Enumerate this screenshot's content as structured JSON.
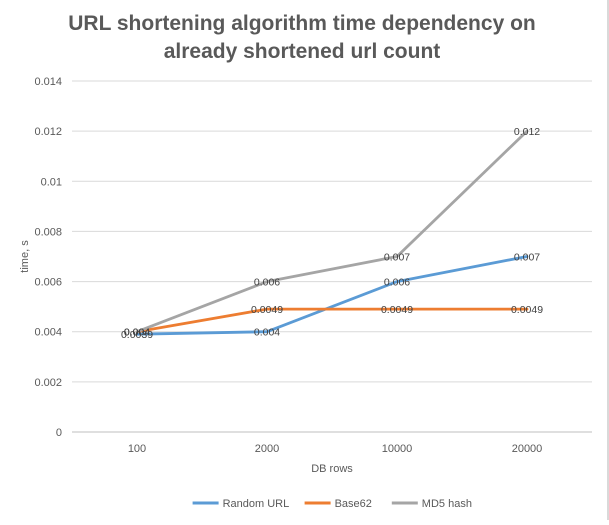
{
  "chart_data": {
    "type": "line",
    "title": "URL shortening algorithm time dependency on already shortened url count",
    "xlabel": "DB rows",
    "ylabel": "time, s",
    "categories": [
      "100",
      "2000",
      "10000",
      "20000"
    ],
    "ylim": [
      0,
      0.014
    ],
    "yticks": [
      "0",
      "0.002",
      "0.004",
      "0.006",
      "0.008",
      "0.01",
      "0.012",
      "0.014"
    ],
    "grid": true,
    "legend_position": "bottom",
    "series": [
      {
        "name": "Random URL",
        "color": "#5b9bd5",
        "values": [
          0.0039,
          0.004,
          0.006,
          0.007
        ],
        "labels": [
          "0.0039",
          "0.004",
          "0.006",
          "0.007"
        ]
      },
      {
        "name": "Base62",
        "color": "#ed7d31",
        "values": [
          0.004,
          0.0049,
          0.0049,
          0.0049
        ],
        "labels": [
          "0.004",
          "0.0049",
          "0.0049",
          "0.0049"
        ]
      },
      {
        "name": "MD5 hash",
        "color": "#a5a5a5",
        "values": [
          0.004,
          0.006,
          0.007,
          0.012
        ],
        "labels": [
          "0.004",
          "0.006",
          "0.007",
          "0.012"
        ]
      }
    ]
  }
}
